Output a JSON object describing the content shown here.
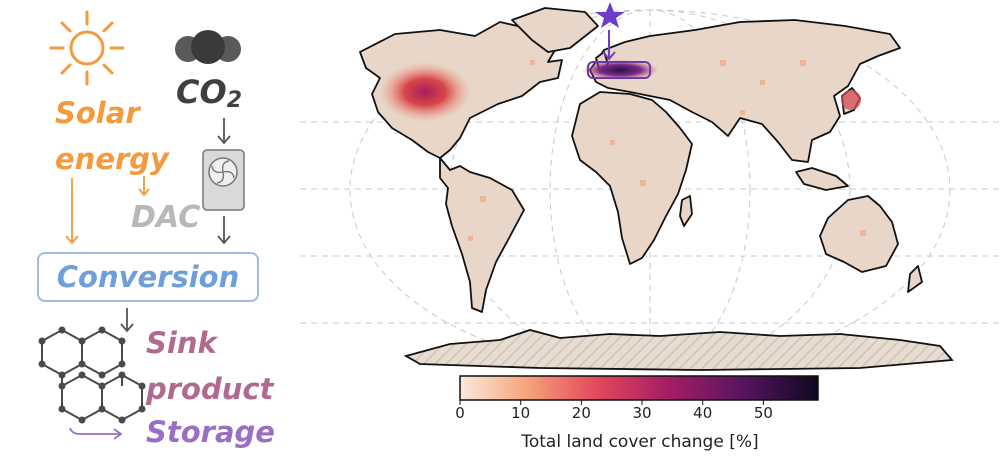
{
  "flow": {
    "solar_line1": "Solar",
    "solar_line2": "energy",
    "co2_main": "CO",
    "co2_sub": "2",
    "dac": "DAC",
    "conversion": "Conversion",
    "sink_line1": "Sink",
    "sink_line2": "product",
    "storage": "Storage",
    "colors": {
      "solar": "#f39a3c",
      "co2": "#3f3f3f",
      "dac": "#b8b8b8",
      "conversion": "#6e9fd8",
      "sink": "#b06a92",
      "storage": "#9a6ec2"
    }
  },
  "icons": [
    "sun-icon",
    "co2-molecule-icon",
    "dac-fan-icon",
    "graphene-lattice-icon",
    "star-marker-icon"
  ],
  "map": {
    "colorbar_title": "Total land cover change [%]",
    "colorbar_ticks": [
      "0",
      "10",
      "20",
      "30",
      "40",
      "50"
    ],
    "colorbar_range": [
      0,
      59
    ],
    "hotspots": [
      "North America (central US)",
      "Europe (central)",
      "Japan"
    ]
  }
}
